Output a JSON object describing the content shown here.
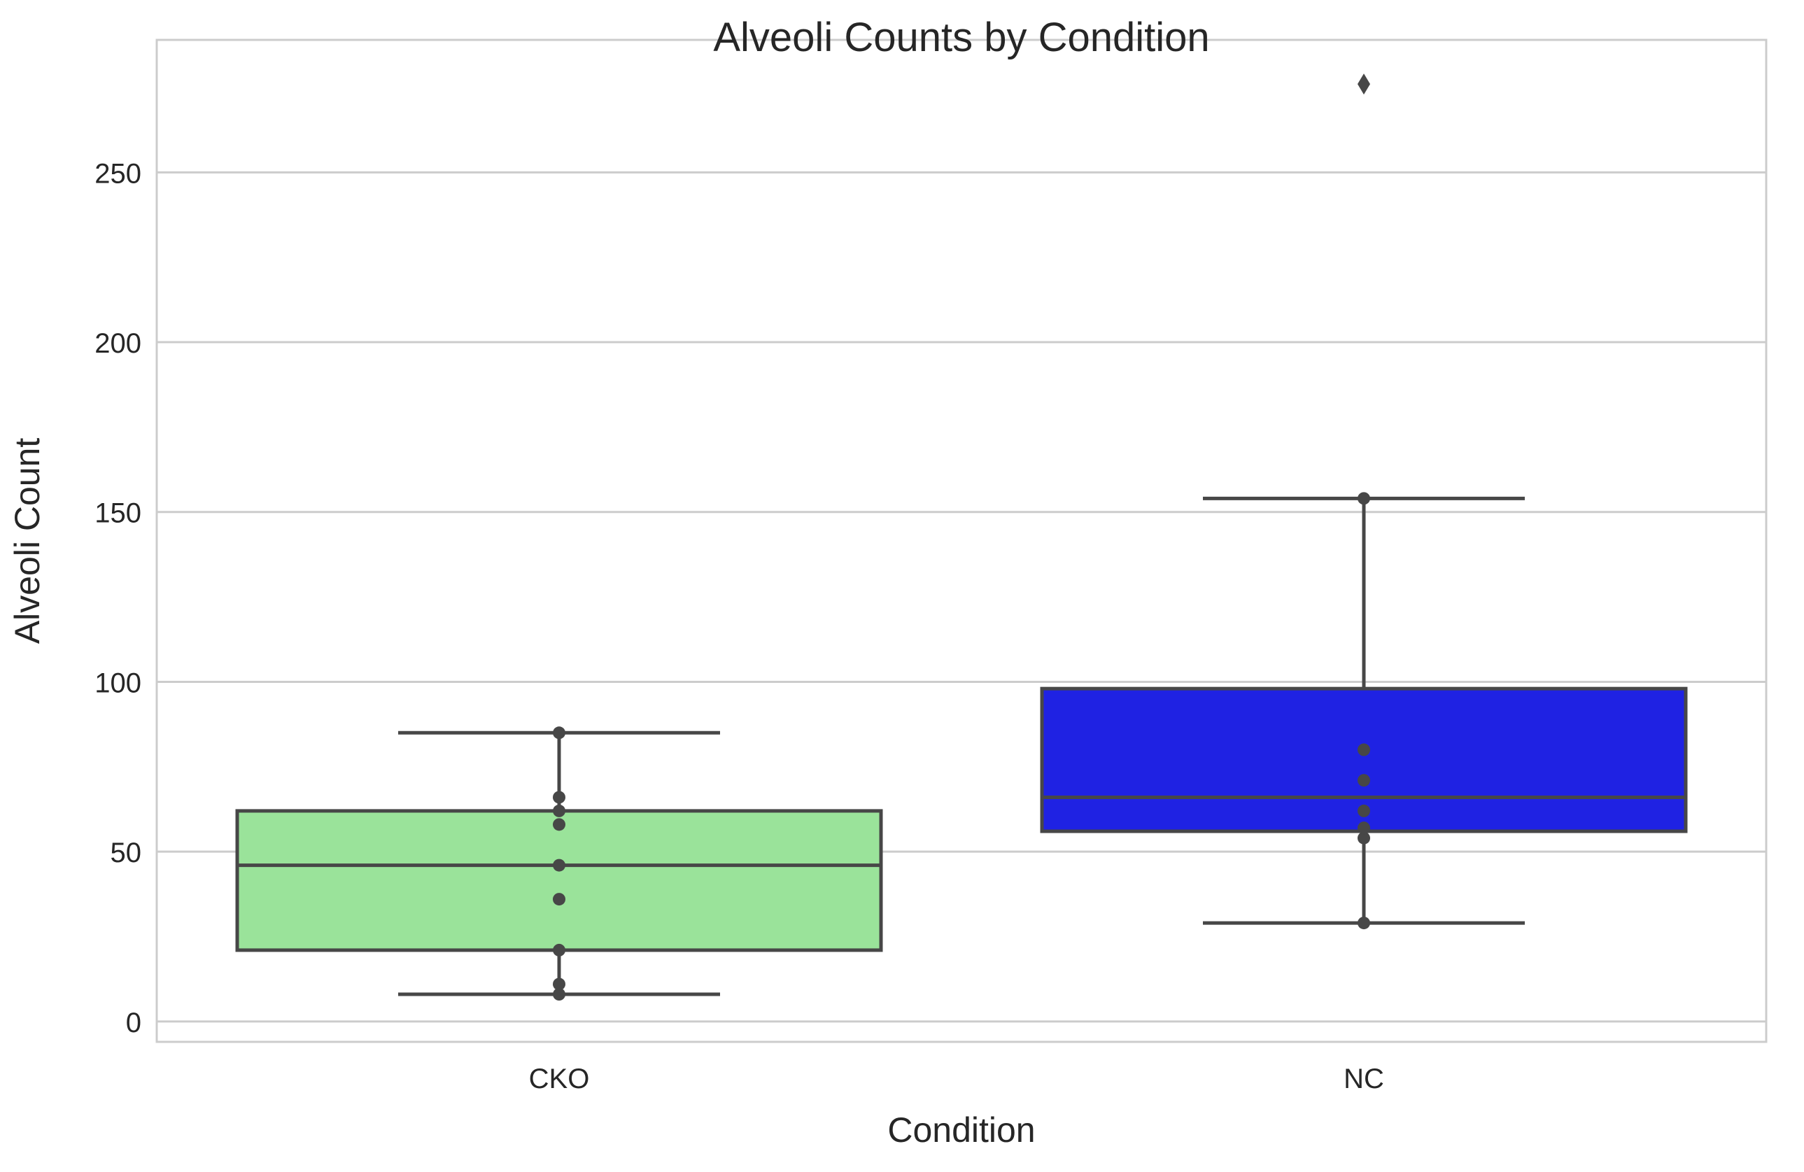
{
  "chart_data": {
    "type": "box",
    "title": "Alveoli Counts by Condition",
    "xlabel": "Condition",
    "ylabel": "Alveoli Count",
    "categories": [
      "CKO",
      "NC"
    ],
    "ylim": [
      -6,
      289
    ],
    "yticks": [
      0,
      50,
      100,
      150,
      200,
      250
    ],
    "grid": "horizontal",
    "boxes": [
      {
        "category": "CKO",
        "color": "#9ae39a",
        "q1": 21,
        "median": 46,
        "q3": 62,
        "whisker_low": 8,
        "whisker_high": 85,
        "outliers": [],
        "points": [
          8,
          11,
          21,
          36,
          46,
          58,
          62,
          66,
          85
        ]
      },
      {
        "category": "NC",
        "color": "#1f22e3",
        "q1": 56,
        "median": 66,
        "q3": 98,
        "whisker_low": 29,
        "whisker_high": 154,
        "outliers": [
          276
        ],
        "points": [
          29,
          54,
          57,
          62,
          71,
          80,
          154
        ]
      }
    ]
  }
}
